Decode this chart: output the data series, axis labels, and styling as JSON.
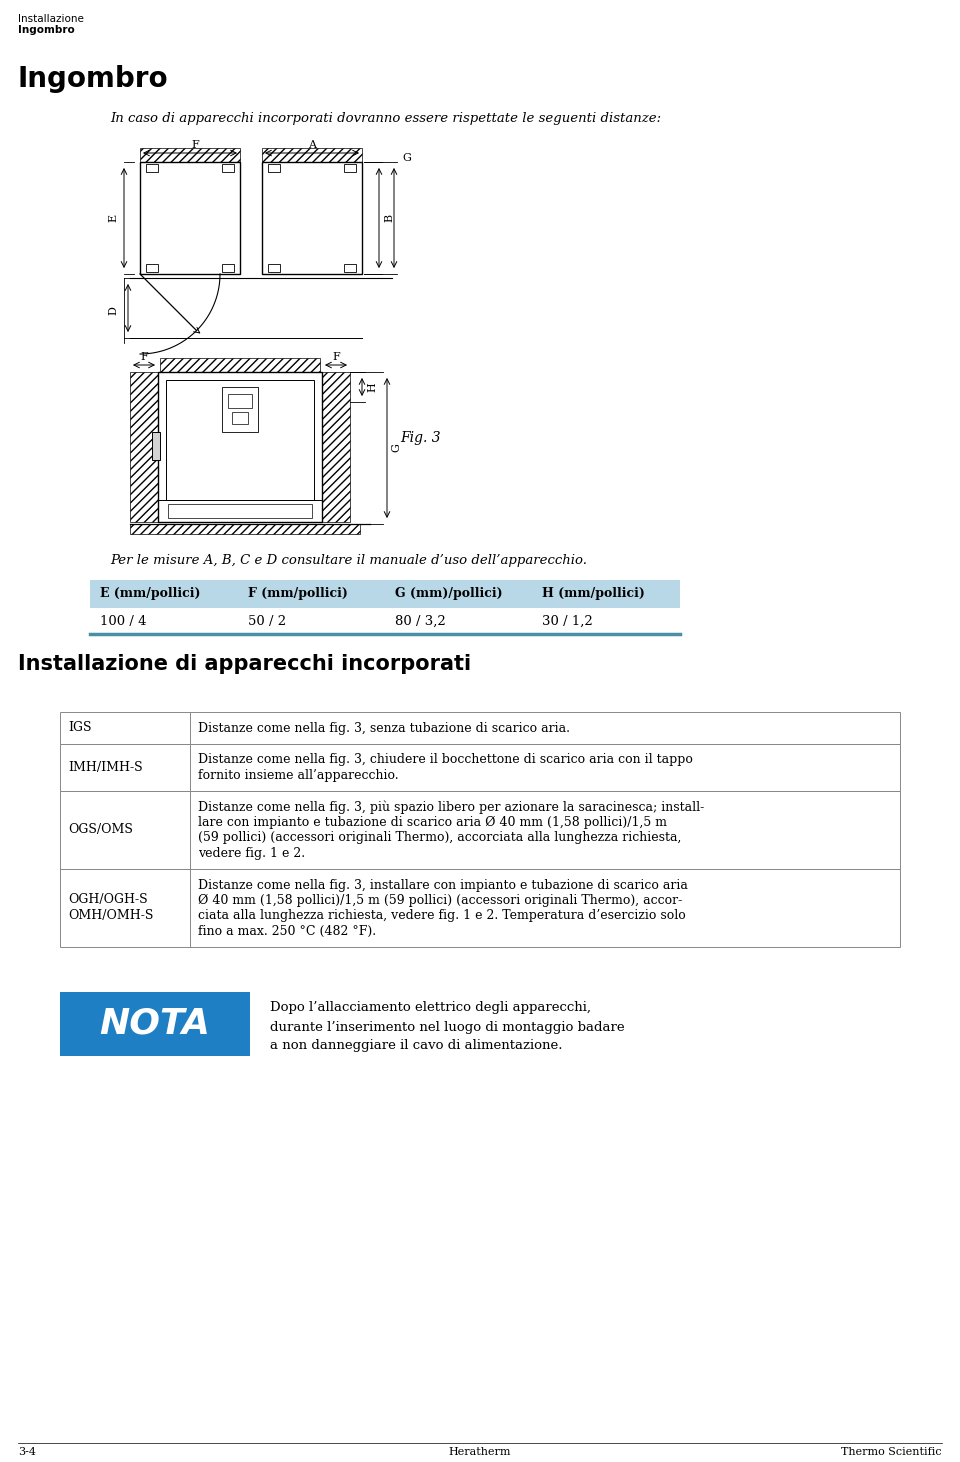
{
  "header_line1": "Installazione",
  "header_line2": "Ingombro",
  "title": "Ingombro",
  "intro_text": "In caso di apparecchi incorporati dovranno essere rispettate le seguenti distanze:",
  "fig_label": "Fig. 3",
  "fig_note": "Per le misure A, B, C e D consultare il manuale d’uso dell’apparecchio.",
  "table_headers": [
    "E (mm/pollici)",
    "F (mm/pollici)",
    "G (mm)/pollici)",
    "H (mm/pollici)"
  ],
  "table_values": [
    "100 / 4",
    "50 / 2",
    "80 / 3,2",
    "30 / 1,2"
  ],
  "section_title": "Installazione di apparecchi incorporati",
  "info_table": [
    {
      "label": "IGS",
      "text": "Distanze come nella fig. 3, senza tubazione di scarico aria."
    },
    {
      "label": "IMH/IMH-S",
      "text": "Distanze come nella fig. 3, chiudere il bocchettone di scarico aria con il tappo\nfornito insieme all’apparecchio."
    },
    {
      "label": "OGS/OMS",
      "text": "Distanze come nella fig. 3, più spazio libero per azionare la saracinesca; install-\nlare con impianto e tubazione di scarico aria Ø 40 mm (1,58 pollici)/1,5 m\n(59 pollici) (accessori originali Thermo), accorciata alla lunghezza richiesta,\nvedere fig. 1 e 2."
    },
    {
      "label": "OGH/OGH-S\nOMH/OMH-S",
      "text": "Distanze come nella fig. 3, installare con impianto e tubazione di scarico aria\nØ 40 mm (1,58 pollici)/1,5 m (59 pollici) (accessori originali Thermo), accor-\nciata alla lunghezza richiesta, vedere fig. 1 e 2. Temperatura d’esercizio solo\nfino a max. 250 °C (482 °F)."
    }
  ],
  "nota_bg": "#1e7fc4",
  "nota_text": "NOTA",
  "nota_body": "Dopo l’allacciamento elettrico degli apparecchi,\ndurante l’inserimento nel luogo di montaggio badare\na non danneggiare il cavo di alimentazione.",
  "footer_left": "3-4",
  "footer_center": "Heratherm",
  "footer_right": "Thermo Scientific",
  "table_header_bg": "#b8d8e8",
  "table_border_color": "#4a90a4",
  "bg_color": "#ffffff"
}
